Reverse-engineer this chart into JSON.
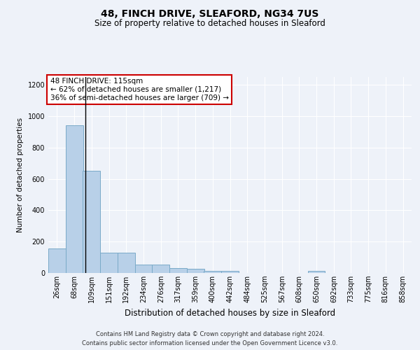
{
  "title1": "48, FINCH DRIVE, SLEAFORD, NG34 7US",
  "title2": "Size of property relative to detached houses in Sleaford",
  "xlabel": "Distribution of detached houses by size in Sleaford",
  "ylabel": "Number of detached properties",
  "footer1": "Contains HM Land Registry data © Crown copyright and database right 2024.",
  "footer2": "Contains public sector information licensed under the Open Government Licence v3.0.",
  "annotation_line1": "48 FINCH DRIVE: 115sqm",
  "annotation_line2": "← 62% of detached houses are smaller (1,217)",
  "annotation_line3": "36% of semi-detached houses are larger (709) →",
  "property_size": 115,
  "bin_labels": [
    "26sqm",
    "68sqm",
    "109sqm",
    "151sqm",
    "192sqm",
    "234sqm",
    "276sqm",
    "317sqm",
    "359sqm",
    "400sqm",
    "442sqm",
    "484sqm",
    "525sqm",
    "567sqm",
    "608sqm",
    "650sqm",
    "692sqm",
    "733sqm",
    "775sqm",
    "816sqm",
    "858sqm"
  ],
  "bin_edges": [
    26,
    68,
    109,
    151,
    192,
    234,
    276,
    317,
    359,
    400,
    442,
    484,
    525,
    567,
    608,
    650,
    692,
    733,
    775,
    816,
    858
  ],
  "bar_values": [
    155,
    940,
    650,
    130,
    130,
    55,
    55,
    30,
    25,
    12,
    12,
    0,
    0,
    0,
    0,
    12,
    0,
    0,
    0,
    0,
    0
  ],
  "bar_color": "#b8d0e8",
  "bar_edgecolor": "#7aaac8",
  "vline_color": "#000000",
  "ylim": [
    0,
    1250
  ],
  "yticks": [
    0,
    200,
    400,
    600,
    800,
    1000,
    1200
  ],
  "background_color": "#eef2f9",
  "grid_color": "#ffffff",
  "annotation_box_edgecolor": "#cc0000",
  "annotation_box_facecolor": "#ffffff",
  "title1_fontsize": 10,
  "title2_fontsize": 8.5,
  "xlabel_fontsize": 8.5,
  "ylabel_fontsize": 7.5,
  "tick_fontsize": 7,
  "footer_fontsize": 6,
  "annot_fontsize": 7.5
}
